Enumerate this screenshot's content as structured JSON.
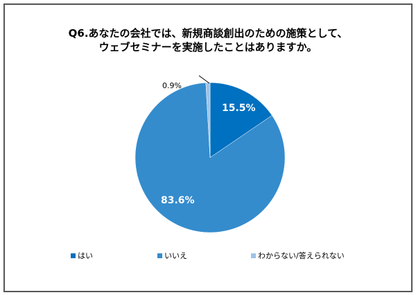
{
  "chart_data": {
    "type": "pie",
    "title": "Q6.あなたの会社では、新規商談創出のための施策として、ウェブセミナーを実施したことはありますか。",
    "title_lines": [
      "Q6.あなたの会社では、新規商談創出のための施策として、",
      "ウェブセミナーを実施したことはありますか。"
    ],
    "categories": [
      "はい",
      "いいえ",
      "わからない/答えられない"
    ],
    "values": [
      15.5,
      83.6,
      0.9
    ],
    "labels": [
      "15.5%",
      "83.6%",
      "0.9%"
    ],
    "colors": [
      "#0070c0",
      "#348ccd",
      "#9dc3e6"
    ],
    "legend_position": "bottom"
  }
}
